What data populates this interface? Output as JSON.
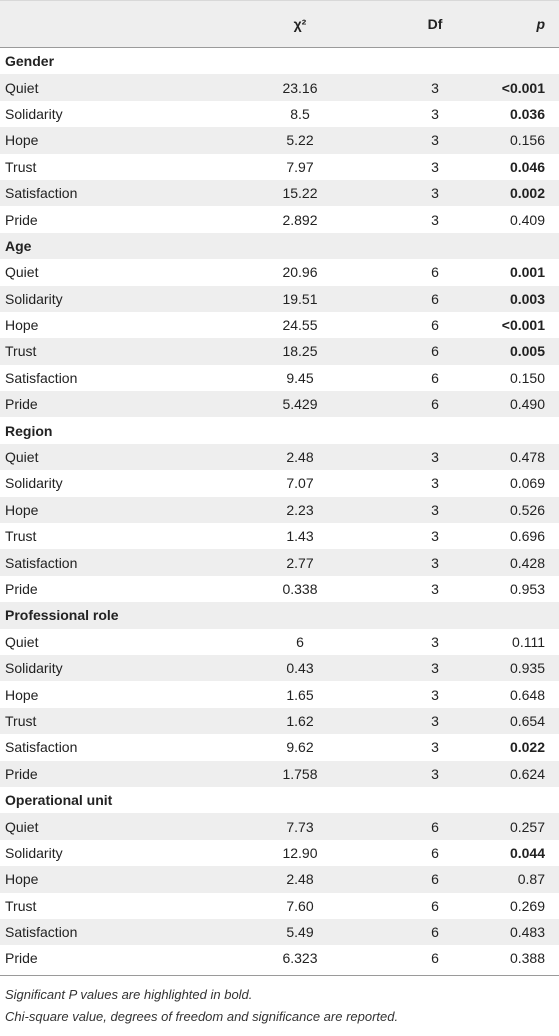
{
  "header": {
    "label": "",
    "chi2": "χ²",
    "df": "Df",
    "p": "p"
  },
  "groups": [
    {
      "name": "Gender",
      "rows": [
        {
          "label": "Quiet",
          "chi2": "23.16",
          "df": "3",
          "p": "<0.001",
          "bold": true
        },
        {
          "label": "Solidarity",
          "chi2": "8.5",
          "df": "3",
          "p": "0.036",
          "bold": true
        },
        {
          "label": "Hope",
          "chi2": "5.22",
          "df": "3",
          "p": "0.156",
          "bold": false
        },
        {
          "label": "Trust",
          "chi2": "7.97",
          "df": "3",
          "p": "0.046",
          "bold": true
        },
        {
          "label": "Satisfaction",
          "chi2": "15.22",
          "df": "3",
          "p": "0.002",
          "bold": true
        },
        {
          "label": "Pride",
          "chi2": "2.892",
          "df": "3",
          "p": "0.409",
          "bold": false
        }
      ]
    },
    {
      "name": "Age",
      "rows": [
        {
          "label": "Quiet",
          "chi2": "20.96",
          "df": "6",
          "p": "0.001",
          "bold": true
        },
        {
          "label": "Solidarity",
          "chi2": "19.51",
          "df": "6",
          "p": "0.003",
          "bold": true
        },
        {
          "label": "Hope",
          "chi2": "24.55",
          "df": "6",
          "p": "<0.001",
          "bold": true
        },
        {
          "label": "Trust",
          "chi2": "18.25",
          "df": "6",
          "p": "0.005",
          "bold": true
        },
        {
          "label": "Satisfaction",
          "chi2": "9.45",
          "df": "6",
          "p": "0.150",
          "bold": false
        },
        {
          "label": "Pride",
          "chi2": "5.429",
          "df": "6",
          "p": "0.490",
          "bold": false
        }
      ]
    },
    {
      "name": "Region",
      "rows": [
        {
          "label": "Quiet",
          "chi2": "2.48",
          "df": "3",
          "p": "0.478",
          "bold": false
        },
        {
          "label": "Solidarity",
          "chi2": "7.07",
          "df": "3",
          "p": "0.069",
          "bold": false
        },
        {
          "label": "Hope",
          "chi2": "2.23",
          "df": "3",
          "p": "0.526",
          "bold": false
        },
        {
          "label": "Trust",
          "chi2": "1.43",
          "df": "3",
          "p": "0.696",
          "bold": false
        },
        {
          "label": "Satisfaction",
          "chi2": "2.77",
          "df": "3",
          "p": "0.428",
          "bold": false
        },
        {
          "label": "Pride",
          "chi2": "0.338",
          "df": "3",
          "p": "0.953",
          "bold": false
        }
      ]
    },
    {
      "name": "Professional role",
      "rows": [
        {
          "label": "Quiet",
          "chi2": "6",
          "df": "3",
          "p": "0.111",
          "bold": false
        },
        {
          "label": "Solidarity",
          "chi2": "0.43",
          "df": "3",
          "p": "0.935",
          "bold": false
        },
        {
          "label": "Hope",
          "chi2": "1.65",
          "df": "3",
          "p": "0.648",
          "bold": false
        },
        {
          "label": "Trust",
          "chi2": "1.62",
          "df": "3",
          "p": "0.654",
          "bold": false
        },
        {
          "label": "Satisfaction",
          "chi2": "9.62",
          "df": "3",
          "p": "0.022",
          "bold": true
        },
        {
          "label": "Pride",
          "chi2": "1.758",
          "df": "3",
          "p": "0.624",
          "bold": false
        }
      ]
    },
    {
      "name": "Operational unit",
      "rows": [
        {
          "label": "Quiet",
          "chi2": "7.73",
          "df": "6",
          "p": "0.257",
          "bold": false
        },
        {
          "label": "Solidarity",
          "chi2": "12.90",
          "df": "6",
          "p": "0.044",
          "bold": true
        },
        {
          "label": "Hope",
          "chi2": "2.48",
          "df": "6",
          "p": "0.87",
          "bold": false
        },
        {
          "label": "Trust",
          "chi2": "7.60",
          "df": "6",
          "p": "0.269",
          "bold": false
        },
        {
          "label": "Satisfaction",
          "chi2": "5.49",
          "df": "6",
          "p": "0.483",
          "bold": false
        },
        {
          "label": "Pride",
          "chi2": "6.323",
          "df": "6",
          "p": "0.388",
          "bold": false
        }
      ]
    }
  ],
  "notes": [
    "Significant P values are highlighted in bold.",
    "Chi-square value, degrees of freedom and significance are reported."
  ],
  "colors": {
    "band": "#eeeeee",
    "rule": "#9a9a9a",
    "text": "#222222"
  }
}
